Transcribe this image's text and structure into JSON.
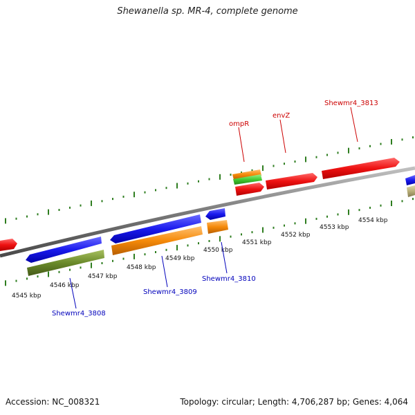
{
  "title": "Shewanella sp. MR-4, complete genome",
  "footer": {
    "accession": "Accession: NC_008321",
    "summary": "Topology: circular; Length: 4,706,287 bp; Genes: 4,064"
  },
  "colors": {
    "backbone": "#8a8a8a",
    "tick": "#2e7d1f",
    "forward_cds": "#ee1111",
    "reverse_cds": "#1a1aee",
    "gene_orange": "#f58a0a",
    "gene_green": "#44cc33",
    "gene_olive": "#6a8a2a",
    "gene_khaki": "#b8ae78",
    "label_forward": "#cc0000",
    "label_reverse": "#0000bb"
  },
  "scale": {
    "unit": "kbp",
    "positions": [
      4545,
      4546,
      4547,
      4548,
      4549,
      4550,
      4551,
      4552,
      4553,
      4554
    ],
    "labels": [
      "4545 kbp",
      "4546 kbp",
      "4547 kbp",
      "4548 kbp",
      "4549 kbp",
      "4550 kbp",
      "4551 kbp",
      "4552 kbp",
      "4553 kbp",
      "4554 kbp"
    ]
  },
  "gene_labels": [
    {
      "name": "ompR",
      "strand": "forward"
    },
    {
      "name": "envZ",
      "strand": "forward"
    },
    {
      "name": "Shewmr4_3813",
      "strand": "forward"
    },
    {
      "name": "Shewmr4_3808",
      "strand": "reverse"
    },
    {
      "name": "Shewmr4_3809",
      "strand": "reverse"
    },
    {
      "name": "Shewmr4_3810",
      "strand": "reverse"
    }
  ]
}
